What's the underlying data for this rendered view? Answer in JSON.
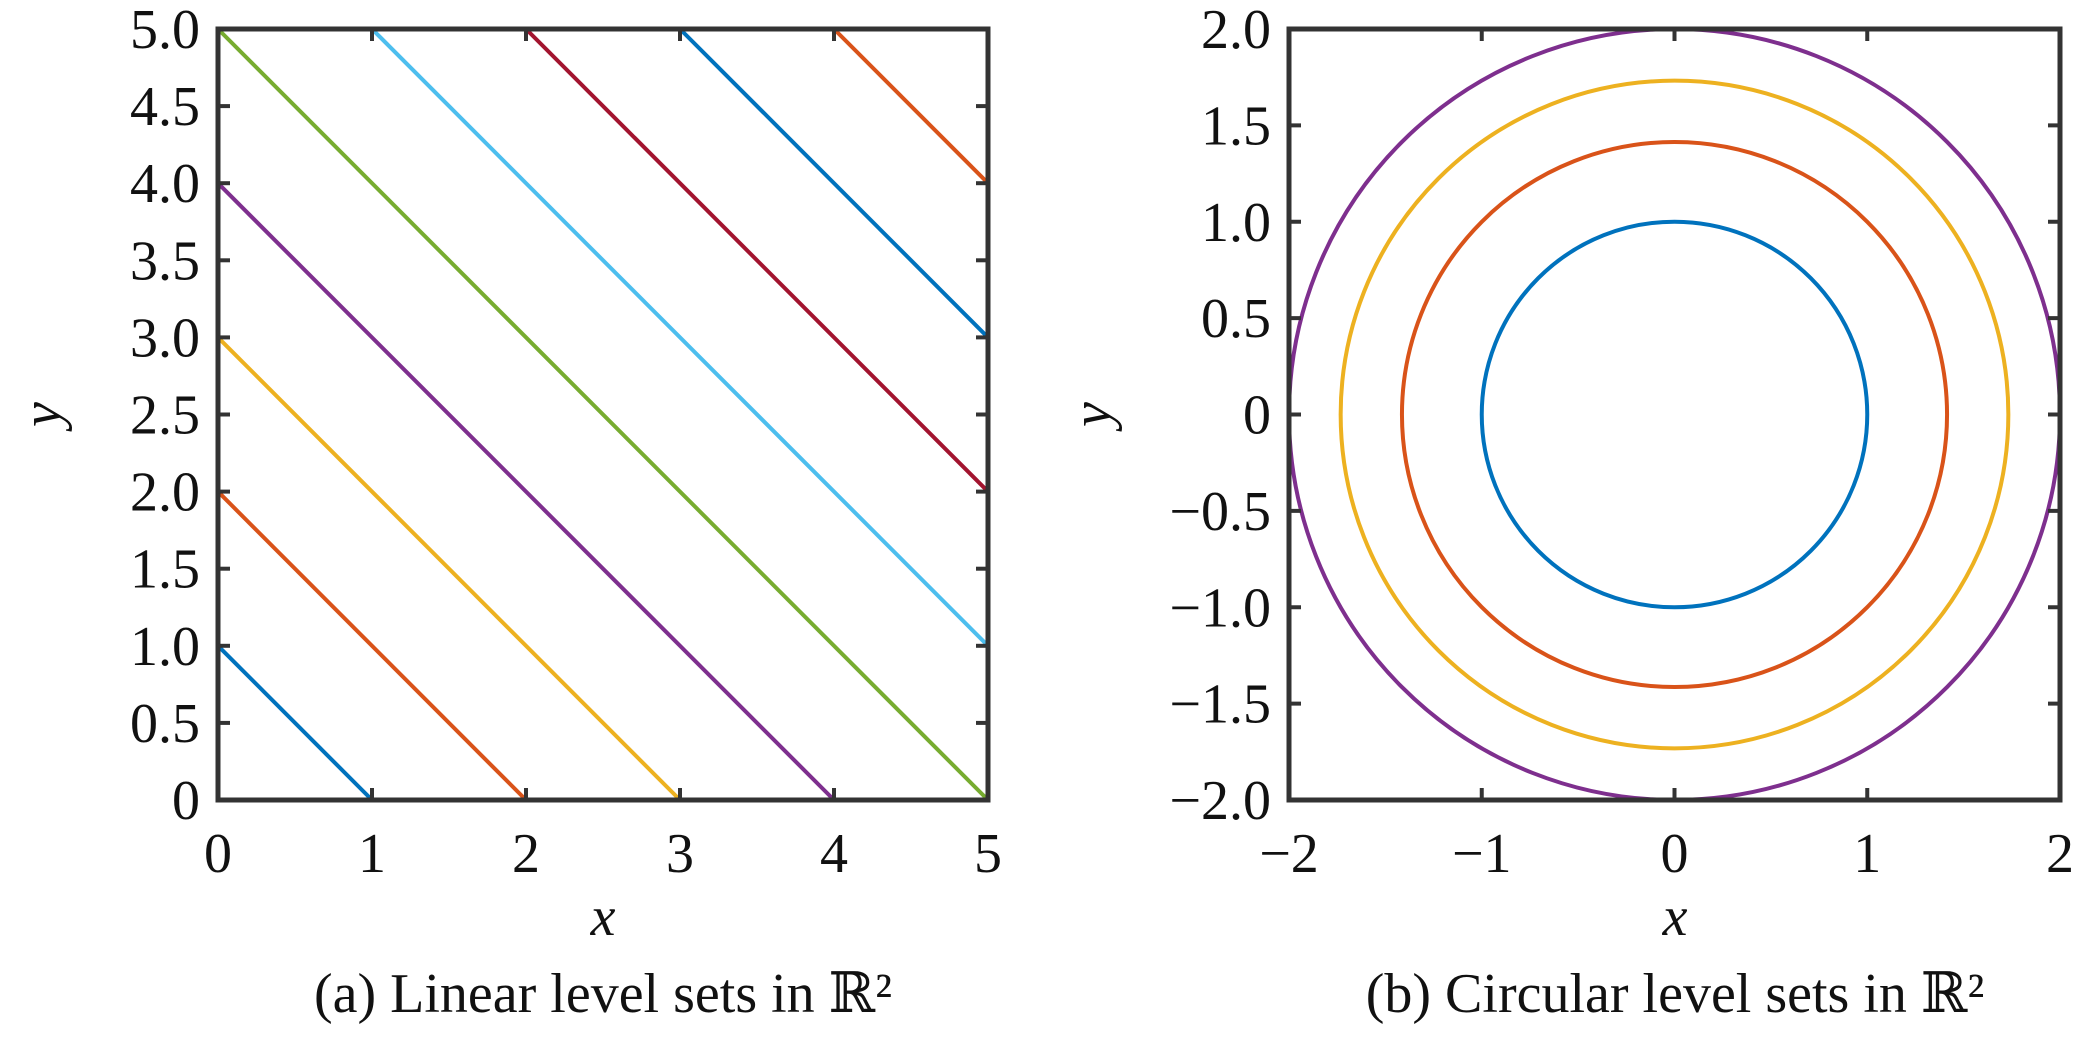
{
  "chart_data": [
    {
      "type": "line",
      "caption": "(a) Linear level sets in ℝ²",
      "xlabel": "x",
      "ylabel": "y",
      "xlim": [
        0,
        5
      ],
      "ylim": [
        0,
        5
      ],
      "xticks": [
        0,
        1,
        2,
        3,
        4,
        5
      ],
      "xtick_labels": [
        "0",
        "1",
        "2",
        "3",
        "4",
        "5"
      ],
      "yticks": [
        0,
        0.5,
        1,
        1.5,
        2,
        2.5,
        3,
        3.5,
        4,
        4.5,
        5
      ],
      "ytick_labels": [
        "0",
        "0.5",
        "1.0",
        "1.5",
        "2.0",
        "2.5",
        "3.0",
        "3.5",
        "4.0",
        "4.5",
        "5.0"
      ],
      "grid": false,
      "series": [
        {
          "color": "#0072BD",
          "x": [
            0,
            1
          ],
          "y": [
            1,
            0
          ]
        },
        {
          "color": "#D95319",
          "x": [
            0,
            2
          ],
          "y": [
            2,
            0
          ]
        },
        {
          "color": "#EDB120",
          "x": [
            0,
            3
          ],
          "y": [
            3,
            0
          ]
        },
        {
          "color": "#7E2F8E",
          "x": [
            0,
            4
          ],
          "y": [
            4,
            0
          ]
        },
        {
          "color": "#77AC30",
          "x": [
            0,
            5
          ],
          "y": [
            5,
            0
          ]
        },
        {
          "color": "#4DBEEE",
          "x": [
            1,
            5
          ],
          "y": [
            5,
            1
          ]
        },
        {
          "color": "#A2142F",
          "x": [
            2,
            5
          ],
          "y": [
            5,
            2
          ]
        },
        {
          "color": "#0072BD",
          "x": [
            3,
            5
          ],
          "y": [
            5,
            3
          ]
        },
        {
          "color": "#D95319",
          "x": [
            4,
            5
          ],
          "y": [
            5,
            4
          ]
        }
      ]
    },
    {
      "type": "line",
      "caption": "(b) Circular level sets in ℝ²",
      "xlabel": "x",
      "ylabel": "y",
      "xlim": [
        -2,
        2
      ],
      "ylim": [
        -2,
        2
      ],
      "xticks": [
        -2,
        -1,
        0,
        1,
        2
      ],
      "xtick_labels": [
        "−2",
        "−1",
        "0",
        "1",
        "2"
      ],
      "yticks": [
        -2,
        -1.5,
        -1,
        -0.5,
        0,
        0.5,
        1,
        1.5,
        2
      ],
      "ytick_labels": [
        "−2.0",
        "−1.5",
        "−1.0",
        "−0.5",
        "0",
        "0.5",
        "1.0",
        "1.5",
        "2.0"
      ],
      "grid": false,
      "series": [
        {
          "color": "#0072BD",
          "shape": "circle",
          "radius": 1.0
        },
        {
          "color": "#D95319",
          "shape": "circle",
          "radius": 1.414
        },
        {
          "color": "#EDB120",
          "shape": "circle",
          "radius": 1.732
        },
        {
          "color": "#7E2F8E",
          "shape": "circle",
          "radius": 2.0
        }
      ]
    }
  ]
}
